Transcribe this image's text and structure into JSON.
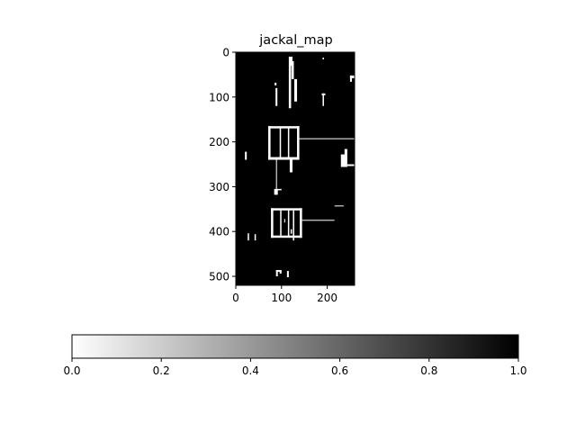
{
  "chart_data": {
    "type": "heatmap",
    "title": "jackal_map",
    "xlabel": "",
    "ylabel": "",
    "image_extent": {
      "x": [
        0,
        260
      ],
      "y": [
        520,
        0
      ]
    },
    "x_ticks": [
      0,
      100,
      200
    ],
    "y_ticks": [
      0,
      100,
      200,
      300,
      400,
      500
    ],
    "colormap": "gray_r",
    "background_value": 1.0,
    "features_value": 0.0,
    "features": [
      {
        "name": "tall-post-1",
        "x0": 116,
        "x1": 121,
        "y0": 10,
        "y1": 125
      },
      {
        "name": "tall-post-1-cap",
        "x0": 120,
        "x1": 124,
        "y0": 10,
        "y1": 30
      },
      {
        "name": "tall-post-2",
        "x0": 122,
        "x1": 127,
        "y0": 20,
        "y1": 60
      },
      {
        "name": "tall-post-3",
        "x0": 128,
        "x1": 134,
        "y0": 60,
        "y1": 110
      },
      {
        "name": "short-post-left",
        "x0": 87,
        "x1": 91,
        "y0": 80,
        "y1": 120
      },
      {
        "name": "short-post-left-top",
        "x0": 85,
        "x1": 89,
        "y0": 68,
        "y1": 74
      },
      {
        "name": "speck-upper-right",
        "x0": 190,
        "x1": 193,
        "y0": 12,
        "y1": 16
      },
      {
        "name": "right-edge-bar",
        "x0": 250,
        "x1": 260,
        "y0": 52,
        "y1": 58
      },
      {
        "name": "right-edge-bar-2",
        "x0": 250,
        "x1": 254,
        "y0": 52,
        "y1": 66
      },
      {
        "name": "small-tee-1",
        "x0": 188,
        "x1": 196,
        "y0": 92,
        "y1": 96
      },
      {
        "name": "small-tee-1-stem",
        "x0": 190,
        "x1": 193,
        "y0": 92,
        "y1": 120
      },
      {
        "name": "box-1-left",
        "x0": 71,
        "x1": 76,
        "y0": 165,
        "y1": 240
      },
      {
        "name": "box-1-right",
        "x0": 134,
        "x1": 139,
        "y0": 165,
        "y1": 240
      },
      {
        "name": "box-1-top",
        "x0": 71,
        "x1": 139,
        "y0": 165,
        "y1": 170
      },
      {
        "name": "box-1-bottom",
        "x0": 71,
        "x1": 139,
        "y0": 234,
        "y1": 240
      },
      {
        "name": "box-1-div-1",
        "x0": 96,
        "x1": 99,
        "y0": 168,
        "y1": 236
      },
      {
        "name": "box-1-div-2",
        "x0": 114,
        "x1": 117,
        "y0": 168,
        "y1": 236
      },
      {
        "name": "box-1-line",
        "x0": 138,
        "x1": 260,
        "y0": 192,
        "y1": 194
      },
      {
        "name": "box-1-stem",
        "x0": 88,
        "x1": 90,
        "y0": 238,
        "y1": 318
      },
      {
        "name": "box-1-foot",
        "x0": 84,
        "x1": 92,
        "y0": 305,
        "y1": 318
      },
      {
        "name": "box-1-foot-2",
        "x0": 90,
        "x1": 100,
        "y0": 305,
        "y1": 308
      },
      {
        "name": "small-hook",
        "x0": 118,
        "x1": 124,
        "y0": 238,
        "y1": 268
      },
      {
        "name": "left-speck-1",
        "x0": 20,
        "x1": 24,
        "y0": 222,
        "y1": 240
      },
      {
        "name": "right-block",
        "x0": 230,
        "x1": 244,
        "y0": 228,
        "y1": 256
      },
      {
        "name": "right-block-top",
        "x0": 238,
        "x1": 244,
        "y0": 216,
        "y1": 228
      },
      {
        "name": "right-block-tail",
        "x0": 244,
        "x1": 260,
        "y0": 250,
        "y1": 254
      },
      {
        "name": "box-2-left",
        "x0": 77,
        "x1": 82,
        "y0": 348,
        "y1": 414
      },
      {
        "name": "box-2-right",
        "x0": 140,
        "x1": 145,
        "y0": 348,
        "y1": 414
      },
      {
        "name": "box-2-top",
        "x0": 77,
        "x1": 145,
        "y0": 348,
        "y1": 353
      },
      {
        "name": "box-2-bottom",
        "x0": 77,
        "x1": 145,
        "y0": 409,
        "y1": 414
      },
      {
        "name": "box-2-div-1",
        "x0": 97,
        "x1": 100,
        "y0": 350,
        "y1": 412
      },
      {
        "name": "box-2-div-2",
        "x0": 114,
        "x1": 117,
        "y0": 350,
        "y1": 412
      },
      {
        "name": "box-2-div-3",
        "x0": 125,
        "x1": 128,
        "y0": 350,
        "y1": 420
      },
      {
        "name": "box-2-inner-1",
        "x0": 106,
        "x1": 108,
        "y0": 372,
        "y1": 380
      },
      {
        "name": "box-2-inner-2",
        "x0": 120,
        "x1": 123,
        "y0": 395,
        "y1": 405
      },
      {
        "name": "box-2-line",
        "x0": 145,
        "x1": 216,
        "y0": 374,
        "y1": 376
      },
      {
        "name": "short-dash-right",
        "x0": 216,
        "x1": 236,
        "y0": 342,
        "y1": 344
      },
      {
        "name": "left-tick-1",
        "x0": 26,
        "x1": 29,
        "y0": 404,
        "y1": 420
      },
      {
        "name": "left-tick-2",
        "x0": 41,
        "x1": 44,
        "y0": 406,
        "y1": 420
      },
      {
        "name": "bottom-bracket-1",
        "x0": 88,
        "x1": 100,
        "y0": 486,
        "y1": 490
      },
      {
        "name": "bottom-bracket-1-leg",
        "x0": 88,
        "x1": 92,
        "y0": 486,
        "y1": 500
      },
      {
        "name": "bottom-bracket-1-leg-2",
        "x0": 96,
        "x1": 100,
        "y0": 486,
        "y1": 494
      },
      {
        "name": "bottom-bracket-2",
        "x0": 112,
        "x1": 116,
        "y0": 488,
        "y1": 502
      }
    ],
    "colorbar": {
      "orientation": "horizontal",
      "range": [
        0.0,
        1.0
      ],
      "ticks": [
        0.0,
        0.2,
        0.4,
        0.6,
        0.8,
        1.0
      ],
      "tick_labels": [
        "0.0",
        "0.2",
        "0.4",
        "0.6",
        "0.8",
        "1.0"
      ]
    }
  }
}
